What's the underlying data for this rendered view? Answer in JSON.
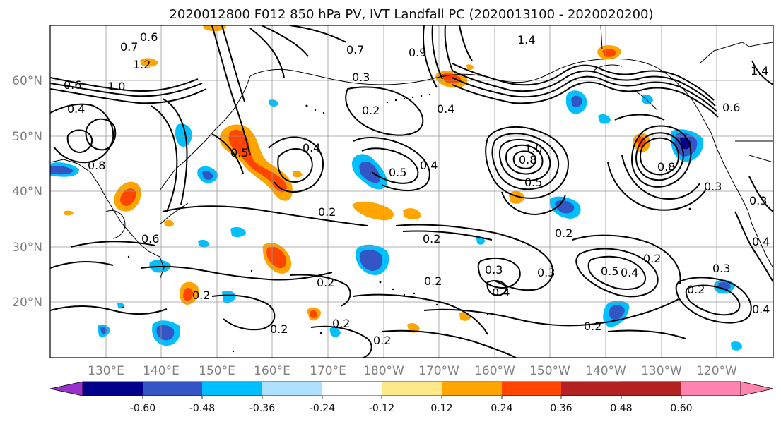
{
  "title": "2020012800 F012 850 hPa PV, IVT Landfall PC (2020013100 - 2020020200)",
  "map": {
    "lat_ticks": [
      "60°N",
      "50°N",
      "40°N",
      "30°N",
      "20°N"
    ],
    "lon_ticks": [
      "130°E",
      "140°E",
      "150°E",
      "160°E",
      "170°E",
      "180°W",
      "170°W",
      "160°W",
      "150°W",
      "140°W",
      "130°W",
      "120°W"
    ],
    "contour_labels": [
      "0.6",
      "0.7",
      "1.2",
      "1.0",
      "0.6",
      "0.4",
      "0.8",
      "1.4",
      "0.7",
      "0.9",
      "0.3",
      "0.2",
      "0.4",
      "0.5",
      "0.4",
      "0.5",
      "0.4",
      "0.8",
      "1.0",
      "0.5",
      "0.6",
      "0.2",
      "0.2",
      "0.2",
      "0.2",
      "0.3",
      "0.3",
      "0.2",
      "0.2",
      "0.4",
      "0.2",
      "0.2",
      "0.2",
      "0.2",
      "0.3",
      "0.5",
      "0.4",
      "0.2",
      "0.4",
      "0.2",
      "0.6",
      "0.8",
      "1.4",
      "0.3",
      "0.3",
      "0.4"
    ]
  },
  "colorbar": {
    "colors": [
      "#9932CC",
      "#00008B",
      "#3455C6",
      "#00BFFF",
      "#B0E0FF",
      "#FFFFFF",
      "#FFE88A",
      "#FFA500",
      "#FF4500",
      "#B22222",
      "#FF85B0"
    ],
    "tick_labels": [
      "-0.60",
      "-0.48",
      "-0.36",
      "-0.24",
      "-0.12",
      "0.12",
      "0.24",
      "0.36",
      "0.48",
      "0.60"
    ]
  }
}
